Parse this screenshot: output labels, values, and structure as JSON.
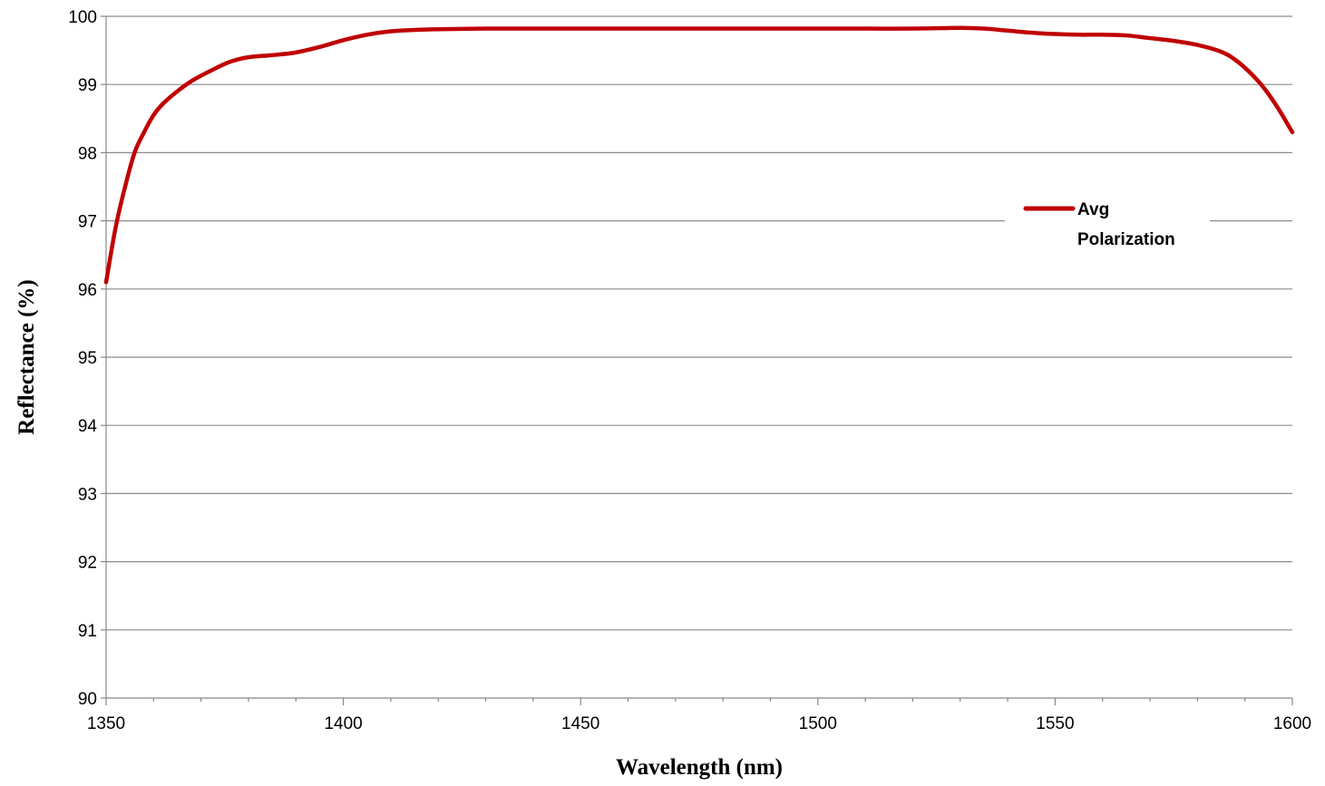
{
  "chart_data": {
    "type": "line",
    "title": "",
    "xlabel": "Wavelength (nm)",
    "ylabel": "Reflectance (%)",
    "xlim": [
      1350,
      1600
    ],
    "ylim": [
      90,
      100
    ],
    "x_ticks": [
      1350,
      1400,
      1450,
      1500,
      1550,
      1600
    ],
    "y_ticks": [
      90,
      91,
      92,
      93,
      94,
      95,
      96,
      97,
      98,
      99,
      100
    ],
    "grid": "horizontal",
    "legend_position": "right",
    "series": [
      {
        "name": "Avg Polarization",
        "color": "#c00000",
        "x": [
          1350,
          1352,
          1354,
          1356,
          1358,
          1360,
          1362,
          1365,
          1368,
          1372,
          1376,
          1380,
          1385,
          1390,
          1395,
          1400,
          1405,
          1410,
          1415,
          1420,
          1430,
          1440,
          1450,
          1460,
          1470,
          1480,
          1490,
          1500,
          1510,
          1520,
          1530,
          1535,
          1540,
          1545,
          1550,
          1555,
          1560,
          1565,
          1570,
          1575,
          1580,
          1585,
          1588,
          1591,
          1594,
          1597,
          1600
        ],
        "y": [
          96.1,
          96.9,
          97.5,
          98.0,
          98.3,
          98.55,
          98.72,
          98.9,
          99.05,
          99.2,
          99.33,
          99.4,
          99.43,
          99.47,
          99.55,
          99.65,
          99.73,
          99.78,
          99.8,
          99.81,
          99.82,
          99.82,
          99.82,
          99.82,
          99.82,
          99.82,
          99.82,
          99.82,
          99.82,
          99.82,
          99.83,
          99.82,
          99.79,
          99.76,
          99.74,
          99.73,
          99.73,
          99.72,
          99.68,
          99.64,
          99.58,
          99.48,
          99.36,
          99.18,
          98.95,
          98.65,
          98.3
        ]
      }
    ]
  }
}
